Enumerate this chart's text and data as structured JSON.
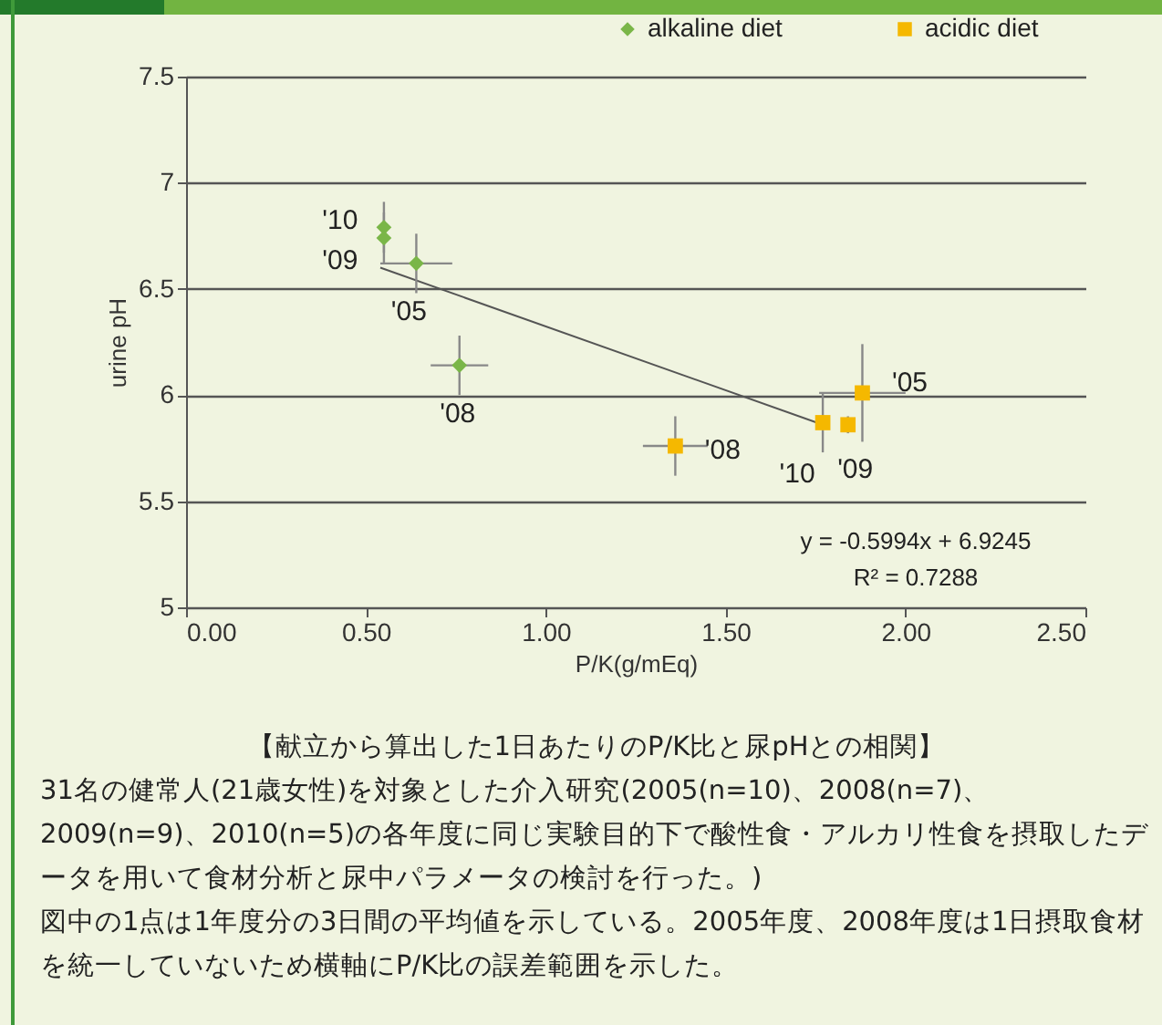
{
  "chart_data": {
    "type": "scatter",
    "xlabel": "P/K(g/mEq)",
    "ylabel": "urine pH",
    "xlim": [
      0,
      2.5
    ],
    "xticks": [
      {
        "value": 0,
        "label": "0.00"
      },
      {
        "value": 0.5,
        "label": "0.50"
      },
      {
        "value": 1,
        "label": "1.00"
      },
      {
        "value": 1.5,
        "label": "1.50"
      },
      {
        "value": 2,
        "label": "2.00"
      },
      {
        "value": 2.5,
        "label": "2.50"
      }
    ],
    "ylim": [
      5,
      7.5
    ],
    "yticks": [
      5,
      5.5,
      6,
      6.5,
      7,
      7.5
    ],
    "grid": "y",
    "legend": "top",
    "series": [
      {
        "name": "alkaline diet",
        "marker": "diamond",
        "color": "#7ab648",
        "x": [
          0.55,
          0.55,
          0.64,
          0.76
        ],
        "values": [
          6.79,
          6.74,
          6.62,
          6.14
        ],
        "errors": [
          0.12,
          0.12,
          0.14,
          0.14
        ],
        "xerrors": [
          null,
          null,
          0.1,
          0.08
        ]
      },
      {
        "name": "acidic diet",
        "marker": "square",
        "color": "#f5b800",
        "x": [
          1.36,
          1.77,
          1.84,
          1.88
        ],
        "values": [
          5.76,
          5.87,
          5.86,
          6.01
        ],
        "errors": [
          0.14,
          0.14,
          0.04,
          0.23
        ],
        "xerrors": [
          0.09,
          null,
          null,
          0.12
        ]
      },
      {
        "type": "line",
        "color": "#555555",
        "x": [
          0.54,
          1.77
        ],
        "values": [
          6.6,
          5.86
        ]
      }
    ],
    "annotations": [
      {
        "text": "'10",
        "x": 0.55,
        "y": 6.79
      },
      {
        "text": "'09",
        "x": 0.55,
        "y": 6.74
      },
      {
        "text": "'05",
        "x": 0.64,
        "y": 6.62
      },
      {
        "text": "'08",
        "x": 0.76,
        "y": 6.14
      },
      {
        "text": "'08",
        "x": 1.36,
        "y": 5.76
      },
      {
        "text": "'10",
        "x": 1.77,
        "y": 5.87
      },
      {
        "text": "'09",
        "x": 1.84,
        "y": 5.86
      },
      {
        "text": "'05",
        "x": 1.88,
        "y": 6.01
      },
      "y = -0.5994x + 6.9245",
      "R² = 0.7288",
      "【献立から算出した1日あたりのP/K比と尿pHとの相関】",
      "31名の健常人(21歳女性)を対象とした介入研究(2005(n=10)、2008(n=7)、2009(n=9)、2010(n=5)の各年度に同じ実験目的下で酸性食・アルカリ性食を摂取したデータを用いて食材分析と尿中パラメータの検討を行った。)",
      "図中の1点は1年度分の3日間の平均値を示している。2005年度、2008年度は1日摂取食材を統一していないため横軸にP/K比の誤差範囲を示した。"
    ]
  }
}
